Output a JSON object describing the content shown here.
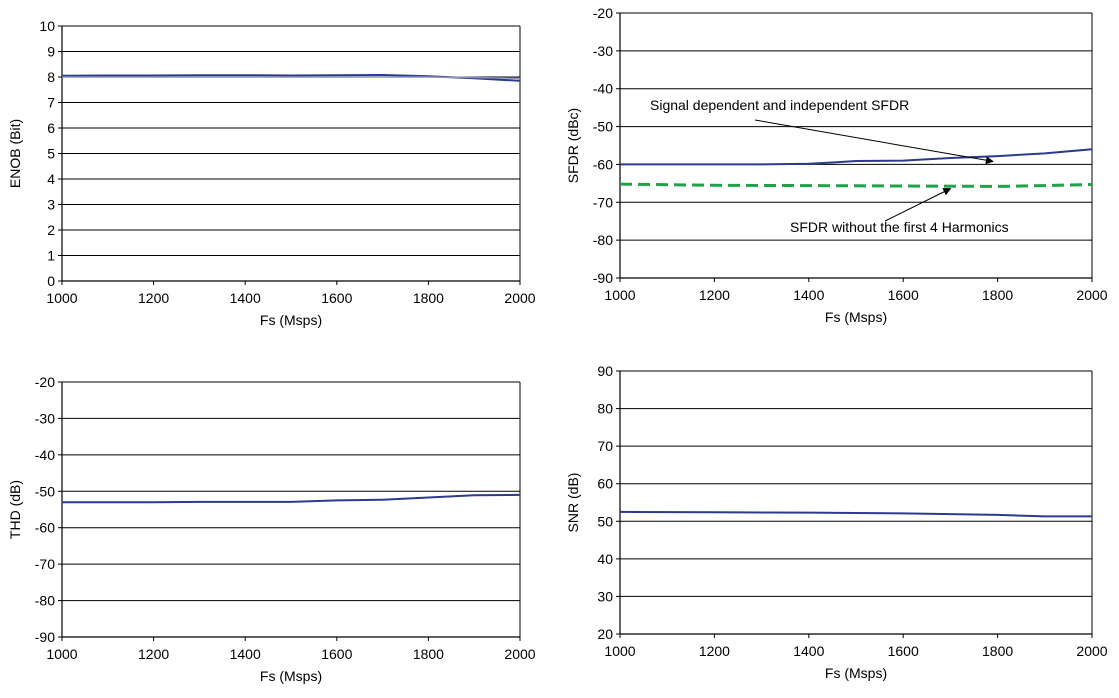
{
  "chart_data": [
    {
      "type": "line",
      "xlabel": "Fs (Msps)",
      "ylabel": "ENOB (Bit)",
      "xlim": [
        1000,
        2000
      ],
      "ylim": [
        0,
        10
      ],
      "x_ticks": [
        1000,
        1200,
        1400,
        1600,
        1800,
        2000
      ],
      "y_ticks": [
        0,
        1,
        2,
        3,
        4,
        5,
        6,
        7,
        8,
        9,
        10
      ],
      "grid": "horizontal",
      "series": [
        {
          "color": "#2b3a8f",
          "style": "solid",
          "x": [
            1000,
            1100,
            1200,
            1300,
            1400,
            1500,
            1600,
            1700,
            1800,
            1900,
            2000
          ],
          "y": [
            8.05,
            8.06,
            8.06,
            8.07,
            8.07,
            8.06,
            8.07,
            8.08,
            8.03,
            7.95,
            7.85
          ]
        },
        {
          "color": "#8a8fb8",
          "style": "solid",
          "x": [
            1000,
            1200,
            1400,
            1600,
            1800,
            1900,
            2000
          ],
          "y": [
            8.0,
            8.0,
            8.0,
            8.0,
            8.0,
            7.98,
            7.95
          ]
        }
      ],
      "annotations": []
    },
    {
      "type": "line",
      "xlabel": "Fs (Msps)",
      "ylabel": "SFDR (dBc)",
      "xlim": [
        1000,
        2000
      ],
      "ylim": [
        -90,
        -20
      ],
      "x_ticks": [
        1000,
        1200,
        1400,
        1600,
        1800,
        2000
      ],
      "y_ticks": [
        -90,
        -80,
        -70,
        -60,
        -50,
        -40,
        -30,
        -20
      ],
      "grid": "horizontal",
      "series": [
        {
          "name": "Signal dependent and independent SFDR",
          "color": "#2b3a8f",
          "style": "solid",
          "x": [
            1000,
            1100,
            1200,
            1300,
            1400,
            1450,
            1500,
            1600,
            1700,
            1800,
            1900,
            2000
          ],
          "y": [
            -60,
            -60,
            -60,
            -60,
            -59.8,
            -59.5,
            -59.1,
            -59,
            -58.3,
            -57.8,
            -57.1,
            -56
          ]
        },
        {
          "name": "SFDR without the first 4 Harmonics",
          "color": "#1fa24a",
          "style": "dashed",
          "x": [
            1000,
            1200,
            1400,
            1600,
            1800,
            1900,
            2000
          ],
          "y": [
            -65.2,
            -65.5,
            -65.6,
            -65.7,
            -65.8,
            -65.6,
            -65.3
          ]
        }
      ],
      "annotations": [
        {
          "text": "Signal dependent and independent SFDR",
          "target_x": 1790,
          "target_y": -60
        },
        {
          "text": "SFDR without the first 4 Harmonics",
          "target_x": 1700,
          "target_y": -65.6
        }
      ]
    },
    {
      "type": "line",
      "xlabel": "Fs (Msps)",
      "ylabel": "THD (dB)",
      "xlim": [
        1000,
        2000
      ],
      "ylim": [
        -90,
        -20
      ],
      "x_ticks": [
        1000,
        1200,
        1400,
        1600,
        1800,
        2000
      ],
      "y_ticks": [
        -90,
        -80,
        -70,
        -60,
        -50,
        -40,
        -30,
        -20
      ],
      "grid": "horizontal",
      "series": [
        {
          "color": "#2b3a8f",
          "style": "solid",
          "x": [
            1000,
            1100,
            1200,
            1300,
            1400,
            1500,
            1600,
            1700,
            1800,
            1900,
            2000
          ],
          "y": [
            -53,
            -53,
            -53,
            -52.9,
            -52.9,
            -52.9,
            -52.5,
            -52.3,
            -51.7,
            -51.1,
            -51
          ]
        }
      ],
      "annotations": []
    },
    {
      "type": "line",
      "xlabel": "Fs (Msps)",
      "ylabel": "SNR (dB)",
      "xlim": [
        1000,
        2000
      ],
      "ylim": [
        20,
        90
      ],
      "x_ticks": [
        1000,
        1200,
        1400,
        1600,
        1800,
        2000
      ],
      "y_ticks": [
        20,
        30,
        40,
        50,
        60,
        70,
        80,
        90
      ],
      "grid": "horizontal",
      "series": [
        {
          "color": "#2b3a8f",
          "style": "solid",
          "x": [
            1000,
            1200,
            1400,
            1500,
            1600,
            1700,
            1800,
            1900,
            2000
          ],
          "y": [
            52.5,
            52.4,
            52.3,
            52.2,
            52.1,
            51.9,
            51.7,
            51.3,
            51.3
          ]
        }
      ],
      "annotations": []
    }
  ]
}
